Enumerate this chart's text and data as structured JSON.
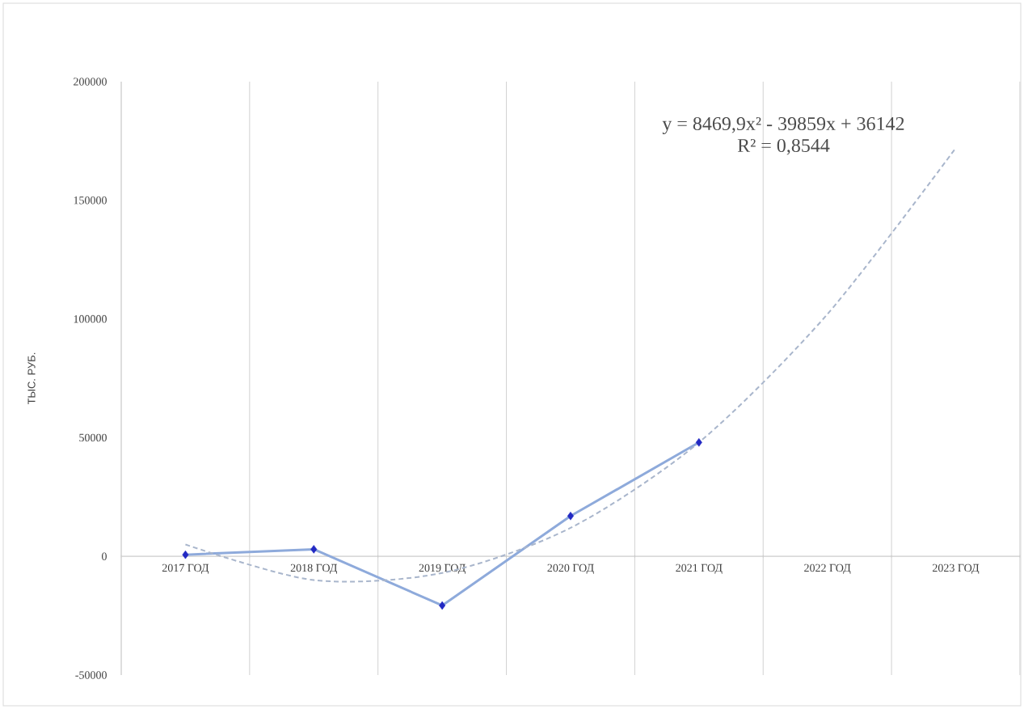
{
  "chart_data": {
    "type": "line",
    "categories": [
      "2017 ГОД",
      "2018 ГОД",
      "2019 ГОД",
      "2020 ГОД",
      "2021 ГОД",
      "2022 ГОД",
      "2023 ГОД"
    ],
    "ylabel": "ТЫС. РУБ.",
    "series": [
      {
        "color": "#8eaadb",
        "marker": "diamond",
        "line_style": "solid",
        "values": [
          700,
          3000,
          -20700,
          17000,
          48000,
          null,
          null
        ]
      },
      {
        "color": "#a9b6cc",
        "marker": "none",
        "line_style": "dashed",
        "values": [
          5000,
          -10000,
          -7000,
          12000,
          48000,
          102000,
          172000
        ]
      }
    ],
    "ylim": [
      -50000,
      200000
    ],
    "yticks": [
      -50000,
      0,
      50000,
      100000,
      150000,
      200000
    ],
    "grid": "x",
    "annotations": [
      "y = 8469,9x² - 39859x + 36142",
      "R² = 0,8544"
    ]
  }
}
